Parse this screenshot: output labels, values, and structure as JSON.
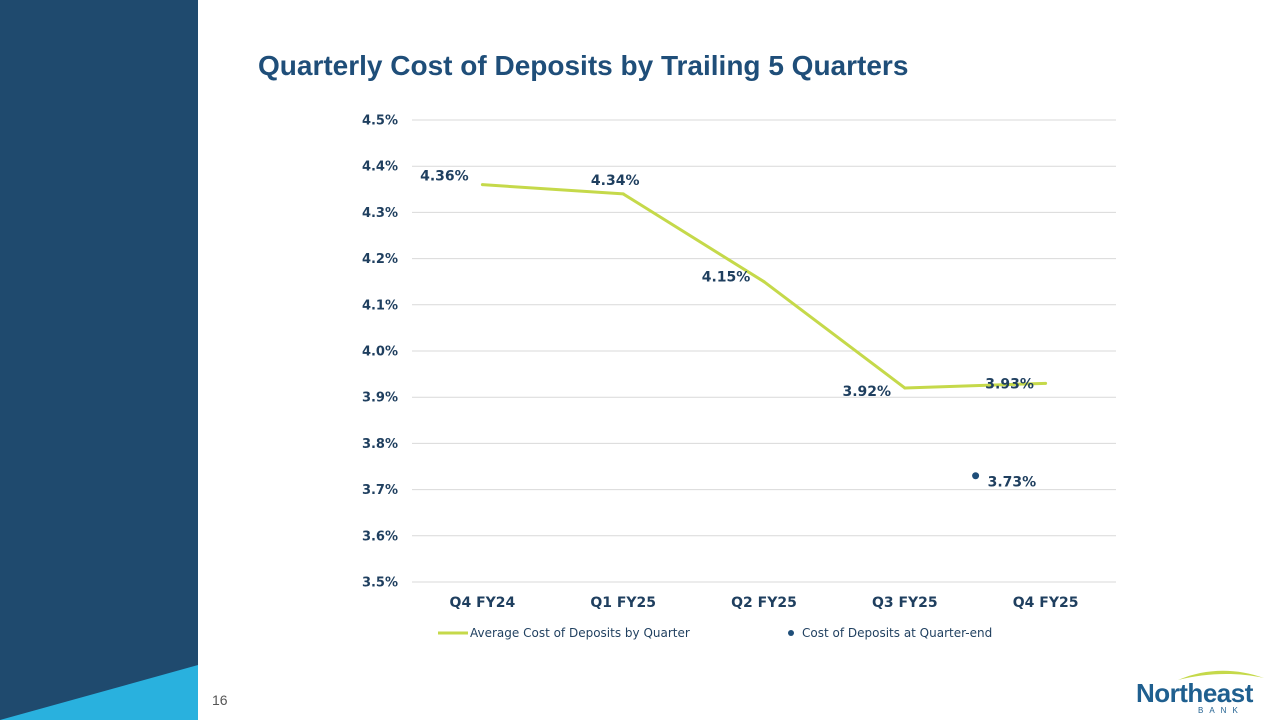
{
  "slide": {
    "title": "Quarterly Cost of Deposits by Trailing 5 Quarters",
    "page_number": "16",
    "colors": {
      "sidebar_dark": "#1f4a6e",
      "sidebar_accent": "#29b1de",
      "title": "#1f4e79"
    }
  },
  "logo": {
    "word": "Northeast",
    "sub": "BANK",
    "icon": "swoosh-icon"
  },
  "chart_data": {
    "type": "line",
    "title": "Quarterly Cost of Deposits by Trailing 5 Quarters",
    "categories": [
      "Q4 FY24",
      "Q1 FY25",
      "Q2 FY25",
      "Q3 FY25",
      "Q4 FY25"
    ],
    "ylim": [
      3.5,
      4.5
    ],
    "yticks": [
      "3.5%",
      "3.6%",
      "3.7%",
      "3.8%",
      "3.9%",
      "4.0%",
      "4.1%",
      "4.2%",
      "4.3%",
      "4.4%",
      "4.5%"
    ],
    "grid": true,
    "legend_position": "bottom",
    "series": [
      {
        "name": "Average Cost of Deposits by Quarter",
        "type": "line",
        "color": "#c5d94a",
        "values": [
          4.36,
          4.34,
          4.15,
          3.92,
          3.93
        ],
        "labels": [
          "4.36%",
          "4.34%",
          "4.15%",
          "3.92%",
          "3.93%"
        ]
      },
      {
        "name": "Cost of Deposits at Quarter-end",
        "type": "scatter",
        "color": "#1f4e79",
        "points": [
          {
            "category": "Q4 FY25",
            "value": 3.73,
            "label": "3.73%"
          }
        ]
      }
    ]
  }
}
